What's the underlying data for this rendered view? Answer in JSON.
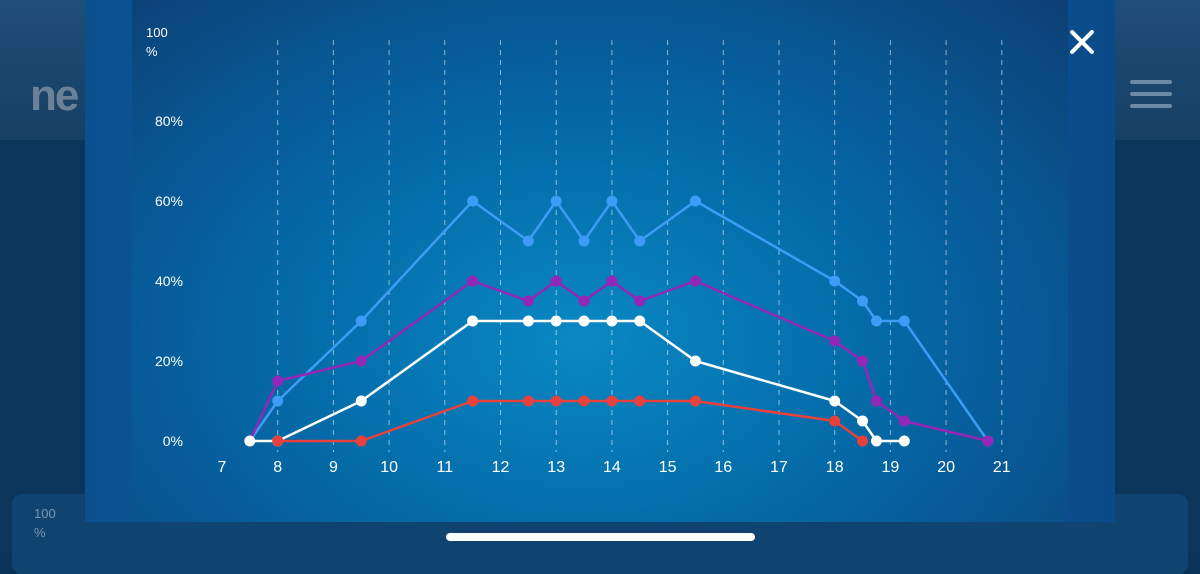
{
  "background": {
    "logo_text": "ne",
    "card_label_top": "100",
    "card_label_bottom": "%"
  },
  "modal": {
    "close_icon": "close-icon"
  },
  "colors": {
    "blue": "#3d9cf5",
    "purple": "#9527b8",
    "white": "#ffffff",
    "red": "#e8413c",
    "axis_text": "#ffffff"
  },
  "chart_data": {
    "type": "line",
    "title": "",
    "xlabel": "",
    "ylabel": "",
    "y_unit_label_top": "100",
    "y_unit_label_bottom": "%",
    "xlim": [
      7,
      21
    ],
    "ylim": [
      0,
      100
    ],
    "x_ticks": [
      7,
      8,
      9,
      10,
      11,
      12,
      13,
      14,
      15,
      16,
      17,
      18,
      19,
      20,
      21
    ],
    "y_ticks": [
      {
        "value": 0,
        "label": "0%"
      },
      {
        "value": 20,
        "label": "20%"
      },
      {
        "value": 40,
        "label": "40%"
      },
      {
        "value": 60,
        "label": "60%"
      },
      {
        "value": 80,
        "label": "80%"
      }
    ],
    "grid": {
      "vertical": "dashed",
      "horizontal": false
    },
    "series": [
      {
        "color": "#3d9cf5",
        "points": [
          [
            7.5,
            0
          ],
          [
            8,
            10
          ],
          [
            9.5,
            30
          ],
          [
            11.5,
            60
          ],
          [
            12.5,
            50
          ],
          [
            13,
            60
          ],
          [
            13.5,
            50
          ],
          [
            14,
            60
          ],
          [
            14.5,
            50
          ],
          [
            15.5,
            60
          ],
          [
            18,
            40
          ],
          [
            18.5,
            35
          ],
          [
            18.75,
            30
          ],
          [
            19.25,
            30
          ],
          [
            20.75,
            0
          ]
        ]
      },
      {
        "color": "#9527b8",
        "points": [
          [
            7.5,
            0
          ],
          [
            8,
            15
          ],
          [
            9.5,
            20
          ],
          [
            11.5,
            40
          ],
          [
            12.5,
            35
          ],
          [
            13,
            40
          ],
          [
            13.5,
            35
          ],
          [
            14,
            40
          ],
          [
            14.5,
            35
          ],
          [
            15.5,
            40
          ],
          [
            18,
            25
          ],
          [
            18.5,
            20
          ],
          [
            18.75,
            10
          ],
          [
            19.25,
            5
          ],
          [
            20.75,
            0
          ]
        ]
      },
      {
        "color": "#ffffff",
        "points": [
          [
            7.5,
            0
          ],
          [
            8,
            0
          ],
          [
            9.5,
            10
          ],
          [
            11.5,
            30
          ],
          [
            12.5,
            30
          ],
          [
            13,
            30
          ],
          [
            13.5,
            30
          ],
          [
            14,
            30
          ],
          [
            14.5,
            30
          ],
          [
            15.5,
            20
          ],
          [
            18,
            10
          ],
          [
            18.5,
            5
          ],
          [
            18.75,
            0
          ],
          [
            19.25,
            0
          ]
        ]
      },
      {
        "color": "#e8413c",
        "points": [
          [
            8,
            0
          ],
          [
            9.5,
            0
          ],
          [
            11.5,
            10
          ],
          [
            12.5,
            10
          ],
          [
            13,
            10
          ],
          [
            13.5,
            10
          ],
          [
            14,
            10
          ],
          [
            14.5,
            10
          ],
          [
            15.5,
            10
          ],
          [
            18,
            5
          ],
          [
            18.5,
            0
          ]
        ]
      }
    ],
    "legend": "none"
  }
}
